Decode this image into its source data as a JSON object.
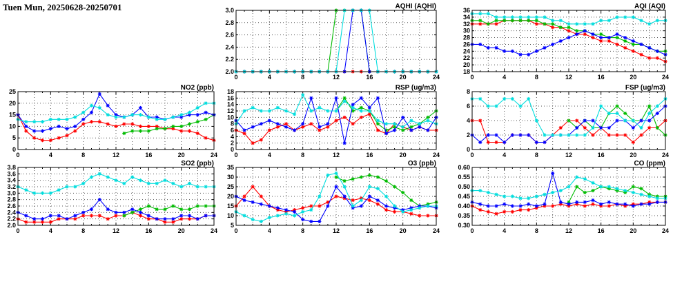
{
  "page": {
    "title": "Tuen Mun, 20250628-20250701"
  },
  "colors": {
    "red": "#ff0000",
    "green": "#00bb00",
    "blue": "#0000ff",
    "cyan": "#00dddd"
  },
  "chart_data": [
    {
      "id": "aqhi",
      "type": "line",
      "title": "AQHI (AQHI)",
      "xlim": [
        0,
        24
      ],
      "xticks": [
        0,
        4,
        8,
        12,
        16,
        20,
        24
      ],
      "x_step_hours": 1,
      "ylim": [
        2.0,
        3.0
      ],
      "ytick_step": 0.2,
      "ytick_decimals": 1,
      "grid": true,
      "legend": "none",
      "series": [
        {
          "name": "red",
          "color": "red",
          "values": [
            2,
            2,
            2,
            2,
            2,
            2,
            2,
            2,
            2,
            2,
            2,
            2,
            2,
            2,
            2,
            2,
            2,
            2,
            2,
            2,
            2,
            2,
            2,
            2,
            2
          ]
        },
        {
          "name": "green",
          "color": "green",
          "values": [
            2,
            2,
            2,
            2,
            2,
            2,
            2,
            2,
            2,
            2,
            2,
            2,
            3,
            3,
            3,
            3,
            2,
            2,
            2,
            2,
            2,
            2,
            2,
            2,
            2
          ]
        },
        {
          "name": "blue",
          "color": "blue",
          "values": [
            2,
            2,
            2,
            2,
            2,
            2,
            2,
            2,
            2,
            2,
            2,
            2,
            2,
            2,
            3,
            3,
            2,
            2,
            2,
            2,
            2,
            2,
            2,
            2,
            2
          ]
        },
        {
          "name": "cyan",
          "color": "cyan",
          "values": [
            2,
            2,
            2,
            2,
            2,
            2,
            2,
            2,
            2,
            2,
            2,
            2,
            2,
            3,
            3,
            3,
            3,
            2,
            2,
            2,
            2,
            2,
            2,
            2,
            2
          ]
        }
      ]
    },
    {
      "id": "aqi",
      "type": "line",
      "title": "AQI (AQI)",
      "xlim": [
        0,
        24
      ],
      "xticks": [
        0,
        4,
        8,
        12,
        16,
        20,
        24
      ],
      "x_step_hours": 1,
      "ylim": [
        18,
        36
      ],
      "ytick_step": 2,
      "ytick_decimals": 0,
      "grid": true,
      "legend": "none",
      "series": [
        {
          "name": "red",
          "color": "red",
          "values": [
            32,
            32,
            32,
            32,
            33,
            33,
            33,
            33,
            32,
            32,
            31,
            31,
            30,
            29,
            29,
            28,
            27,
            27,
            26,
            25,
            24,
            23,
            22,
            22,
            21
          ]
        },
        {
          "name": "green",
          "color": "green",
          "values": [
            33,
            33,
            32,
            33,
            33,
            33,
            33,
            33,
            33,
            32,
            32,
            31,
            31,
            30,
            30,
            29,
            29,
            28,
            28,
            27,
            26,
            26,
            25,
            24,
            24
          ]
        },
        {
          "name": "blue",
          "color": "blue",
          "values": [
            26,
            26,
            25,
            25,
            24,
            24,
            23,
            23,
            24,
            25,
            26,
            27,
            28,
            29,
            30,
            29,
            28,
            28,
            29,
            28,
            27,
            26,
            25,
            24,
            23
          ]
        },
        {
          "name": "cyan",
          "color": "cyan",
          "values": [
            35,
            35,
            35,
            34,
            34,
            34,
            34,
            34,
            34,
            34,
            33,
            33,
            32,
            32,
            32,
            32,
            33,
            33,
            34,
            34,
            34,
            33,
            32,
            33,
            33
          ]
        }
      ]
    },
    {
      "id": "no2",
      "type": "line",
      "title": "NO2 (ppb)",
      "xlim": [
        0,
        24
      ],
      "xticks": [
        0,
        4,
        8,
        12,
        16,
        20,
        24
      ],
      "x_step_hours": 1,
      "ylim": [
        0,
        25
      ],
      "ytick_step": 5,
      "ytick_decimals": 0,
      "grid": true,
      "legend": "none",
      "series": [
        {
          "name": "red",
          "color": "red",
          "values": [
            15,
            8,
            5,
            4,
            4,
            5,
            6,
            8,
            11,
            12,
            12,
            11,
            10,
            11,
            11,
            10,
            10,
            10,
            9,
            9,
            8,
            8,
            7,
            5,
            4
          ]
        },
        {
          "name": "green",
          "color": "green",
          "values": [
            null,
            null,
            null,
            null,
            null,
            null,
            null,
            null,
            null,
            null,
            null,
            null,
            null,
            7,
            8,
            8,
            8,
            9,
            9,
            10,
            10,
            11,
            12,
            13,
            15
          ]
        },
        {
          "name": "blue",
          "color": "blue",
          "values": [
            15,
            10,
            8,
            8,
            9,
            10,
            9,
            10,
            13,
            16,
            24,
            19,
            15,
            14,
            15,
            18,
            14,
            14,
            13,
            14,
            14,
            15,
            15,
            16,
            15
          ]
        },
        {
          "name": "cyan",
          "color": "cyan",
          "values": [
            13,
            12,
            12,
            12,
            13,
            13,
            13,
            14,
            16,
            19,
            18,
            15,
            14,
            14,
            15,
            15,
            14,
            13,
            13,
            14,
            15,
            16,
            18,
            20,
            20
          ]
        }
      ]
    },
    {
      "id": "rsp",
      "type": "line",
      "title": "RSP (ug/m3)",
      "xlim": [
        0,
        24
      ],
      "xticks": [
        0,
        4,
        8,
        12,
        16,
        20,
        24
      ],
      "x_step_hours": 1,
      "ylim": [
        0,
        18
      ],
      "ytick_step": 2,
      "ytick_decimals": 0,
      "grid": true,
      "legend": "none",
      "series": [
        {
          "name": "red",
          "color": "red",
          "values": [
            6,
            5,
            2,
            3,
            6,
            7,
            8,
            6,
            7,
            8,
            6,
            7,
            9,
            10,
            8,
            10,
            11,
            6,
            5,
            8,
            7,
            6,
            7,
            6,
            6
          ]
        },
        {
          "name": "green",
          "color": "green",
          "values": [
            null,
            null,
            null,
            null,
            null,
            null,
            null,
            null,
            null,
            null,
            null,
            null,
            12,
            16,
            12,
            13,
            12,
            8,
            6,
            7,
            6,
            7,
            8,
            10,
            12
          ]
        },
        {
          "name": "blue",
          "color": "blue",
          "values": [
            9,
            6,
            7,
            8,
            9,
            8,
            7,
            6,
            8,
            16,
            7,
            8,
            16,
            2,
            14,
            16,
            13,
            16,
            5,
            6,
            10,
            6,
            7,
            6,
            10
          ]
        },
        {
          "name": "cyan",
          "color": "cyan",
          "values": [
            8,
            12,
            13,
            12,
            12,
            13,
            12,
            11,
            17,
            12,
            13,
            12,
            12,
            15,
            13,
            12,
            12,
            9,
            8,
            8,
            7,
            9,
            8,
            9,
            8
          ]
        }
      ]
    },
    {
      "id": "fsp",
      "type": "line",
      "title": "FSP (ug/m3)",
      "xlim": [
        0,
        24
      ],
      "xticks": [
        0,
        4,
        8,
        12,
        16,
        20,
        24
      ],
      "x_step_hours": 1,
      "ylim": [
        0,
        8
      ],
      "ytick_step": 2,
      "ytick_decimals": 0,
      "grid": true,
      "legend": "none",
      "series": [
        {
          "name": "red",
          "color": "red",
          "values": [
            4,
            4,
            1,
            1,
            1,
            2,
            2,
            2,
            1,
            1,
            2,
            3,
            4,
            4,
            3,
            2,
            3,
            2,
            2,
            2,
            1,
            2,
            3,
            3,
            4
          ]
        },
        {
          "name": "green",
          "color": "green",
          "values": [
            null,
            null,
            null,
            null,
            null,
            null,
            null,
            null,
            null,
            null,
            null,
            null,
            4,
            3,
            4,
            3,
            3,
            5,
            6,
            5,
            4,
            4,
            6,
            3,
            2
          ]
        },
        {
          "name": "blue",
          "color": "blue",
          "values": [
            2,
            1,
            2,
            2,
            1,
            2,
            2,
            2,
            1,
            1,
            2,
            2,
            2,
            3,
            4,
            4,
            3,
            3,
            4,
            4,
            3,
            4,
            4,
            5,
            6
          ]
        },
        {
          "name": "cyan",
          "color": "cyan",
          "values": [
            7,
            7,
            6,
            6,
            7,
            7,
            6,
            7,
            4,
            2,
            2,
            2,
            2,
            2,
            2,
            3,
            6,
            5,
            5,
            4,
            4,
            3,
            5,
            6,
            7
          ]
        }
      ]
    },
    {
      "id": "so2",
      "type": "line",
      "title": "SO2 (ppb)",
      "xlim": [
        0,
        24
      ],
      "xticks": [
        0,
        4,
        8,
        12,
        16,
        20,
        24
      ],
      "x_step_hours": 1,
      "ylim": [
        2.0,
        3.8
      ],
      "ytick_step": 0.2,
      "ytick_decimals": 1,
      "grid": true,
      "legend": "none",
      "series": [
        {
          "name": "red",
          "color": "red",
          "values": [
            2.2,
            2.1,
            2.1,
            2.1,
            2.1,
            2.2,
            2.2,
            2.2,
            2.3,
            2.3,
            2.3,
            2.2,
            2.3,
            2.3,
            2.4,
            2.3,
            2.2,
            2.2,
            2.1,
            2.1,
            2.2,
            2.2,
            2.2,
            2.3,
            2.3
          ]
        },
        {
          "name": "green",
          "color": "green",
          "values": [
            null,
            null,
            null,
            null,
            null,
            null,
            null,
            null,
            null,
            null,
            null,
            null,
            null,
            2.3,
            2.4,
            2.5,
            2.6,
            2.5,
            2.5,
            2.6,
            2.5,
            2.5,
            2.6,
            2.6,
            2.6
          ]
        },
        {
          "name": "blue",
          "color": "blue",
          "values": [
            2.4,
            2.3,
            2.2,
            2.2,
            2.3,
            2.3,
            2.2,
            2.3,
            2.4,
            2.5,
            2.8,
            2.5,
            2.4,
            2.4,
            2.5,
            2.4,
            2.3,
            2.2,
            2.2,
            2.2,
            2.3,
            2.3,
            2.2,
            2.3,
            2.3
          ]
        },
        {
          "name": "cyan",
          "color": "cyan",
          "values": [
            3.2,
            3.1,
            3.0,
            3.0,
            3.0,
            3.1,
            3.2,
            3.2,
            3.3,
            3.5,
            3.6,
            3.5,
            3.4,
            3.3,
            3.5,
            3.4,
            3.3,
            3.3,
            3.4,
            3.3,
            3.2,
            3.3,
            3.2,
            3.2,
            3.2
          ]
        }
      ]
    },
    {
      "id": "o3",
      "type": "line",
      "title": "O3 (ppb)",
      "xlim": [
        0,
        24
      ],
      "xticks": [
        0,
        4,
        8,
        12,
        16,
        20,
        24
      ],
      "x_step_hours": 1,
      "ylim": [
        5,
        35
      ],
      "ytick_step": 5,
      "ytick_decimals": 0,
      "grid": true,
      "legend": "none",
      "series": [
        {
          "name": "red",
          "color": "red",
          "values": [
            15,
            20,
            25,
            20,
            15,
            13,
            12,
            13,
            14,
            15,
            15,
            17,
            20,
            19,
            18,
            19,
            18,
            16,
            13,
            12,
            12,
            11,
            10,
            10,
            10
          ]
        },
        {
          "name": "green",
          "color": "green",
          "values": [
            null,
            null,
            null,
            null,
            null,
            null,
            null,
            null,
            null,
            null,
            null,
            null,
            30,
            28,
            29,
            30,
            31,
            30,
            28,
            25,
            22,
            18,
            15,
            16,
            17
          ]
        },
        {
          "name": "blue",
          "color": "blue",
          "values": [
            20,
            18,
            17,
            16,
            15,
            14,
            13,
            12,
            8,
            7,
            7,
            15,
            25,
            20,
            14,
            15,
            20,
            18,
            15,
            14,
            13,
            14,
            15,
            15,
            14
          ]
        },
        {
          "name": "cyan",
          "color": "cyan",
          "values": [
            12,
            10,
            8,
            7,
            9,
            10,
            11,
            10,
            12,
            13,
            20,
            31,
            32,
            25,
            15,
            18,
            25,
            24,
            20,
            15,
            12,
            13,
            14,
            15,
            15
          ]
        }
      ]
    },
    {
      "id": "co",
      "type": "line",
      "title": "CO (ppm)",
      "xlim": [
        0,
        24
      ],
      "xticks": [
        0,
        4,
        8,
        12,
        16,
        20,
        24
      ],
      "x_step_hours": 1,
      "ylim": [
        0.3,
        0.6
      ],
      "ytick_step": 0.05,
      "ytick_decimals": 2,
      "grid": true,
      "legend": "none",
      "series": [
        {
          "name": "red",
          "color": "red",
          "values": [
            0.4,
            0.38,
            0.37,
            0.36,
            0.37,
            0.37,
            0.38,
            0.38,
            0.39,
            0.4,
            0.4,
            0.41,
            0.4,
            0.41,
            0.4,
            0.41,
            0.4,
            0.4,
            0.41,
            0.4,
            0.41,
            0.41,
            0.42,
            0.42,
            0.42
          ]
        },
        {
          "name": "green",
          "color": "green",
          "values": [
            null,
            null,
            null,
            null,
            null,
            null,
            null,
            null,
            null,
            null,
            null,
            null,
            0.42,
            0.5,
            0.47,
            0.48,
            0.5,
            0.49,
            0.48,
            0.47,
            0.5,
            0.49,
            0.46,
            0.45,
            0.45
          ]
        },
        {
          "name": "blue",
          "color": "blue",
          "values": [
            0.42,
            0.41,
            0.4,
            0.4,
            0.41,
            0.4,
            0.4,
            0.41,
            0.4,
            0.41,
            0.57,
            0.42,
            0.41,
            0.42,
            0.42,
            0.43,
            0.41,
            0.42,
            0.41,
            0.41,
            0.4,
            0.41,
            0.41,
            0.42,
            0.42
          ]
        },
        {
          "name": "cyan",
          "color": "cyan",
          "values": [
            0.48,
            0.48,
            0.47,
            0.46,
            0.45,
            0.45,
            0.44,
            0.44,
            0.45,
            0.46,
            0.47,
            0.48,
            0.5,
            0.55,
            0.54,
            0.52,
            0.5,
            0.5,
            0.49,
            0.48,
            0.47,
            0.46,
            0.45,
            0.44,
            0.44
          ]
        }
      ]
    }
  ]
}
